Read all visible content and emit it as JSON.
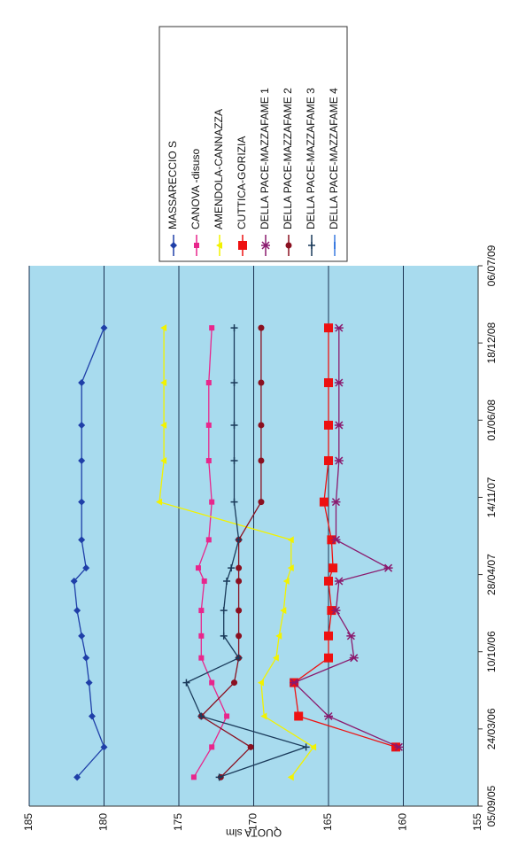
{
  "chart_data": {
    "type": "line",
    "y_label": "QUOTA slm",
    "x": [
      "19/11/05",
      "05/02/06",
      "26/04/06",
      "22/07/06",
      "24/09/06",
      "20/11/06",
      "25/01/07",
      "11/04/07",
      "15/05/07",
      "27/07/07",
      "02/11/07",
      "17/02/08",
      "19/05/08",
      "06/09/08",
      "26/01/09"
    ],
    "xlim": [
      "05/09/05",
      "06/07/09"
    ],
    "xticks": [
      "05/09/05",
      "24/03/06",
      "10/10/06",
      "28/04/07",
      "14/11/07",
      "01/06/08",
      "18/12/08",
      "06/07/09"
    ],
    "ylim": [
      155,
      185
    ],
    "yticks": [
      155,
      160,
      165,
      170,
      175,
      180,
      185
    ],
    "grid": true,
    "legend": "right",
    "series": [
      {
        "name": "MASSARECCIO S",
        "color": "#1f3fa8",
        "marker": "diamond",
        "values": [
          181.8,
          180.0,
          180.8,
          181.0,
          181.2,
          181.5,
          181.8,
          182.0,
          181.2,
          181.5,
          181.5,
          181.5,
          181.5,
          181.5,
          180.0
        ]
      },
      {
        "name": "CANOVA -disuso",
        "color": "#e8268c",
        "marker": "square",
        "values": [
          174.0,
          172.8,
          171.8,
          172.8,
          173.5,
          173.5,
          173.5,
          173.3,
          173.7,
          173.0,
          172.8,
          173.0,
          173.0,
          173.0,
          172.8
        ]
      },
      {
        "name": "AMENDOLA-CANNAZZA",
        "color": "#f2f200",
        "marker": "triangle",
        "values": [
          167.5,
          166.0,
          169.3,
          169.5,
          168.5,
          168.3,
          168.0,
          167.8,
          167.5,
          167.5,
          176.3,
          176.0,
          176.0,
          176.0,
          176.0
        ]
      },
      {
        "name": "CUTTICA-GORIZIA",
        "color": "#ee1111",
        "marker": "bigsquare",
        "values": [
          null,
          160.5,
          167.0,
          167.3,
          165.0,
          165.0,
          164.8,
          165.0,
          164.7,
          164.8,
          165.3,
          165.0,
          165.0,
          165.0,
          165.0
        ]
      },
      {
        "name": "DELLA PACE-MAZZAFAME 1",
        "color": "#8a1a6e",
        "marker": "star",
        "values": [
          null,
          160.3,
          165.0,
          167.3,
          163.3,
          163.5,
          164.5,
          164.3,
          161.0,
          164.5,
          164.5,
          164.3,
          164.3,
          164.3,
          164.3
        ]
      },
      {
        "name": "DELLA PACE-MAZZAFAME 2",
        "color": "#8a1020",
        "marker": "circle",
        "values": [
          172.2,
          170.2,
          173.5,
          171.3,
          171.0,
          171.0,
          171.0,
          171.0,
          171.0,
          171.0,
          169.5,
          169.5,
          169.5,
          169.5,
          169.5
        ]
      },
      {
        "name": "DELLA PACE-MAZZAFAME 3",
        "color": "#1a3a5a",
        "marker": "plus",
        "values": [
          172.3,
          166.5,
          173.5,
          174.5,
          171.0,
          172.0,
          172.0,
          171.8,
          171.5,
          171.0,
          171.3,
          171.3,
          171.3,
          171.3,
          171.3
        ]
      },
      {
        "name": "DELLA PACE-MAZZAFAME 4",
        "color": "#3a7ae0",
        "marker": "dash",
        "values": [
          null,
          null,
          null,
          null,
          null,
          null,
          null,
          null,
          null,
          null,
          null,
          null,
          null,
          null,
          null
        ]
      }
    ]
  }
}
